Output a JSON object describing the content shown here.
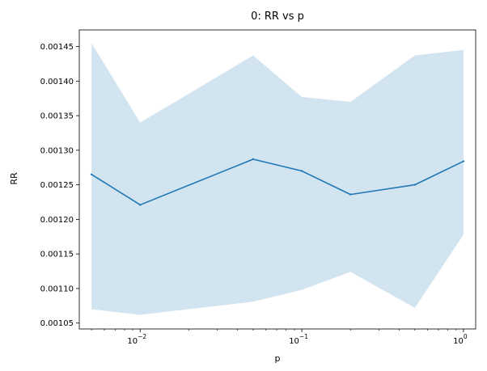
{
  "chart_data": {
    "type": "line",
    "title": "0: RR vs p",
    "xlabel": "p",
    "ylabel": "RR",
    "xscale": "log",
    "xlim": [
      0.0042,
      1.19
    ],
    "ylim": [
      0.0010415,
      0.001474
    ],
    "grid": false,
    "x": [
      0.005,
      0.01,
      0.05,
      0.1,
      0.2,
      0.5,
      1.0
    ],
    "series": [
      {
        "values": [
          0.001265,
          0.001221,
          0.001287,
          0.00127,
          0.001236,
          0.00125,
          0.001284
        ],
        "band_upper": [
          0.001455,
          0.00134,
          0.001437,
          0.001377,
          0.00137,
          0.001437,
          0.001445
        ],
        "band_lower": [
          0.00107,
          0.001062,
          0.001081,
          0.001098,
          0.001124,
          0.001072,
          0.001178
        ]
      }
    ],
    "x_ticks": [
      {
        "value": 0.01,
        "base": "10",
        "exp": "−2"
      },
      {
        "value": 0.1,
        "base": "10",
        "exp": "−1"
      },
      {
        "value": 1.0,
        "base": "10",
        "exp": "0"
      }
    ],
    "y_ticks": [
      {
        "value": 0.00105,
        "label": "0.00105"
      },
      {
        "value": 0.0011,
        "label": "0.00110"
      },
      {
        "value": 0.00115,
        "label": "0.00115"
      },
      {
        "value": 0.0012,
        "label": "0.00120"
      },
      {
        "value": 0.00125,
        "label": "0.00125"
      },
      {
        "value": 0.0013,
        "label": "0.00130"
      },
      {
        "value": 0.00135,
        "label": "0.00135"
      },
      {
        "value": 0.0014,
        "label": "0.00140"
      },
      {
        "value": 0.00145,
        "label": "0.00145"
      }
    ],
    "colors": {
      "line": "#1f77b4",
      "band": "#1f77b4",
      "band_opacity": 0.2
    }
  }
}
